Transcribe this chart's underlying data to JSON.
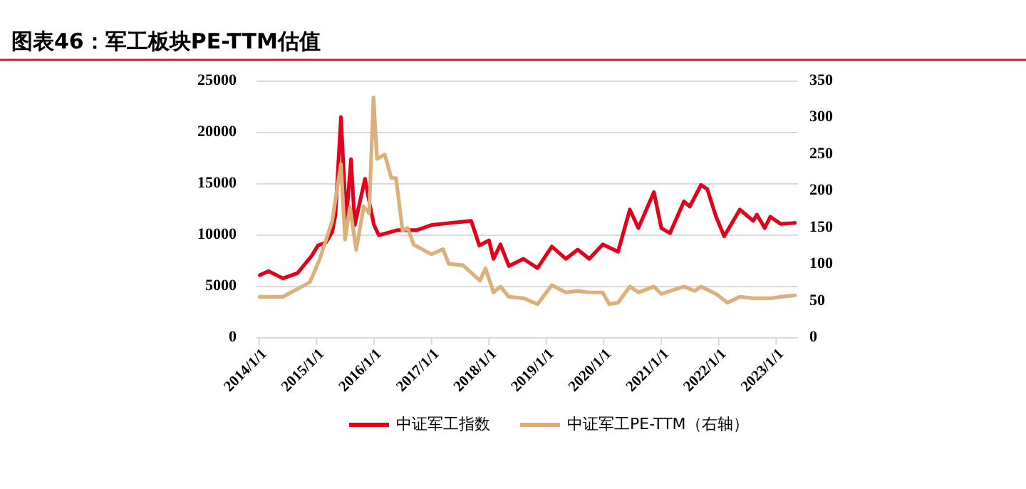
{
  "chart_data": {
    "type": "line",
    "title": "图表46：军工板块PE-TTM估值",
    "xlim": [
      "2013-12-15",
      "2023-05-20"
    ],
    "xticks": [
      {
        "value": "2014-01-01",
        "label": "2014/1/1"
      },
      {
        "value": "2015-01-01",
        "label": "2015/1/1"
      },
      {
        "value": "2016-01-01",
        "label": "2016/1/1"
      },
      {
        "value": "2017-01-01",
        "label": "2017/1/1"
      },
      {
        "value": "2018-01-01",
        "label": "2018/1/1"
      },
      {
        "value": "2019-01-01",
        "label": "2019/1/1"
      },
      {
        "value": "2020-01-01",
        "label": "2020/1/1"
      },
      {
        "value": "2021-01-01",
        "label": "2021/1/1"
      },
      {
        "value": "2022-01-01",
        "label": "2022/1/1"
      },
      {
        "value": "2023-01-01",
        "label": "2023/1/1"
      }
    ],
    "ylim": [
      0,
      25000
    ],
    "yticks": [
      0,
      5000,
      10000,
      15000,
      20000,
      25000
    ],
    "y2lim": [
      0,
      350
    ],
    "y2ticks": [
      0,
      50,
      100,
      150,
      200,
      250,
      300,
      350
    ],
    "grid": "y",
    "legend": "bottom",
    "series": [
      {
        "name": "中证军工指数",
        "color": "#e3001b",
        "x": [
          "2014-01-05",
          "2014-03-01",
          "2014-06-01",
          "2014-09-01",
          "2014-12-01",
          "2015-01-10",
          "2015-03-01",
          "2015-04-10",
          "2015-05-01",
          "2015-06-05",
          "2015-07-08",
          "2015-08-08",
          "2015-09-01",
          "2015-11-05",
          "2015-12-05",
          "2016-01-01",
          "2016-02-01",
          "2016-06-01",
          "2016-10-01",
          "2017-01-01",
          "2017-05-01",
          "2017-09-10",
          "2017-11-01",
          "2018-01-01",
          "2018-01-30",
          "2018-03-15",
          "2018-05-08",
          "2018-08-08",
          "2018-11-06",
          "2019-02-05",
          "2019-05-05",
          "2019-07-20",
          "2019-10-01",
          "2019-12-25",
          "2020-04-01",
          "2020-06-15",
          "2020-08-08",
          "2020-11-15",
          "2021-01-01",
          "2021-02-25",
          "2021-05-25",
          "2021-07-01",
          "2021-09-10",
          "2021-10-20",
          "2021-12-15",
          "2022-02-05",
          "2022-05-15",
          "2022-08-08",
          "2022-09-01",
          "2022-10-20",
          "2022-11-25",
          "2023-01-30",
          "2023-04-30"
        ],
        "values": [
          6100,
          6500,
          5800,
          6300,
          8000,
          9000,
          9300,
          10300,
          12000,
          21500,
          11400,
          17400,
          11000,
          15500,
          13000,
          11000,
          10000,
          10500,
          10500,
          11000,
          11200,
          11400,
          9000,
          9500,
          7700,
          9100,
          7000,
          7700,
          6800,
          8900,
          7700,
          8600,
          7700,
          9100,
          8400,
          12500,
          10700,
          14200,
          10700,
          10200,
          13300,
          12800,
          14900,
          14500,
          11800,
          9900,
          12500,
          11400,
          12000,
          10700,
          11800,
          11100,
          11200
        ]
      },
      {
        "name": "中证军工PE-TTM（右轴）",
        "color": "#dbb07a",
        "axis": "y2",
        "x": [
          "2014-01-05",
          "2014-06-01",
          "2014-11-20",
          "2015-01-20",
          "2015-04-10",
          "2015-06-05",
          "2015-07-01",
          "2015-08-01",
          "2015-09-10",
          "2015-10-28",
          "2015-12-01",
          "2015-12-29",
          "2016-01-20",
          "2016-03-10",
          "2016-04-20",
          "2016-05-20",
          "2016-07-01",
          "2016-08-01",
          "2016-09-10",
          "2017-01-01",
          "2017-03-15",
          "2017-04-20",
          "2017-07-20",
          "2017-11-05",
          "2017-12-10",
          "2018-01-30",
          "2018-03-15",
          "2018-05-08",
          "2018-08-08",
          "2018-11-06",
          "2019-02-05",
          "2019-05-05",
          "2019-07-20",
          "2019-10-01",
          "2019-12-25",
          "2020-02-05",
          "2020-04-01",
          "2020-06-15",
          "2020-08-08",
          "2020-11-15",
          "2021-01-01",
          "2021-05-25",
          "2021-08-01",
          "2021-09-10",
          "2021-12-15",
          "2022-02-25",
          "2022-05-15",
          "2022-08-08",
          "2022-11-25",
          "2023-01-30",
          "2023-04-30"
        ],
        "values": [
          56,
          56,
          76,
          107,
          159,
          237,
          134,
          179,
          120,
          179,
          170,
          328,
          244,
          250,
          218,
          218,
          146,
          150,
          127,
          114,
          121,
          101,
          99,
          78,
          95,
          62,
          70,
          56,
          54,
          46,
          72,
          62,
          64,
          62,
          62,
          46,
          48,
          70,
          62,
          70,
          60,
          70,
          64,
          70,
          60,
          48,
          56,
          54,
          54,
          56,
          58
        ]
      }
    ]
  }
}
